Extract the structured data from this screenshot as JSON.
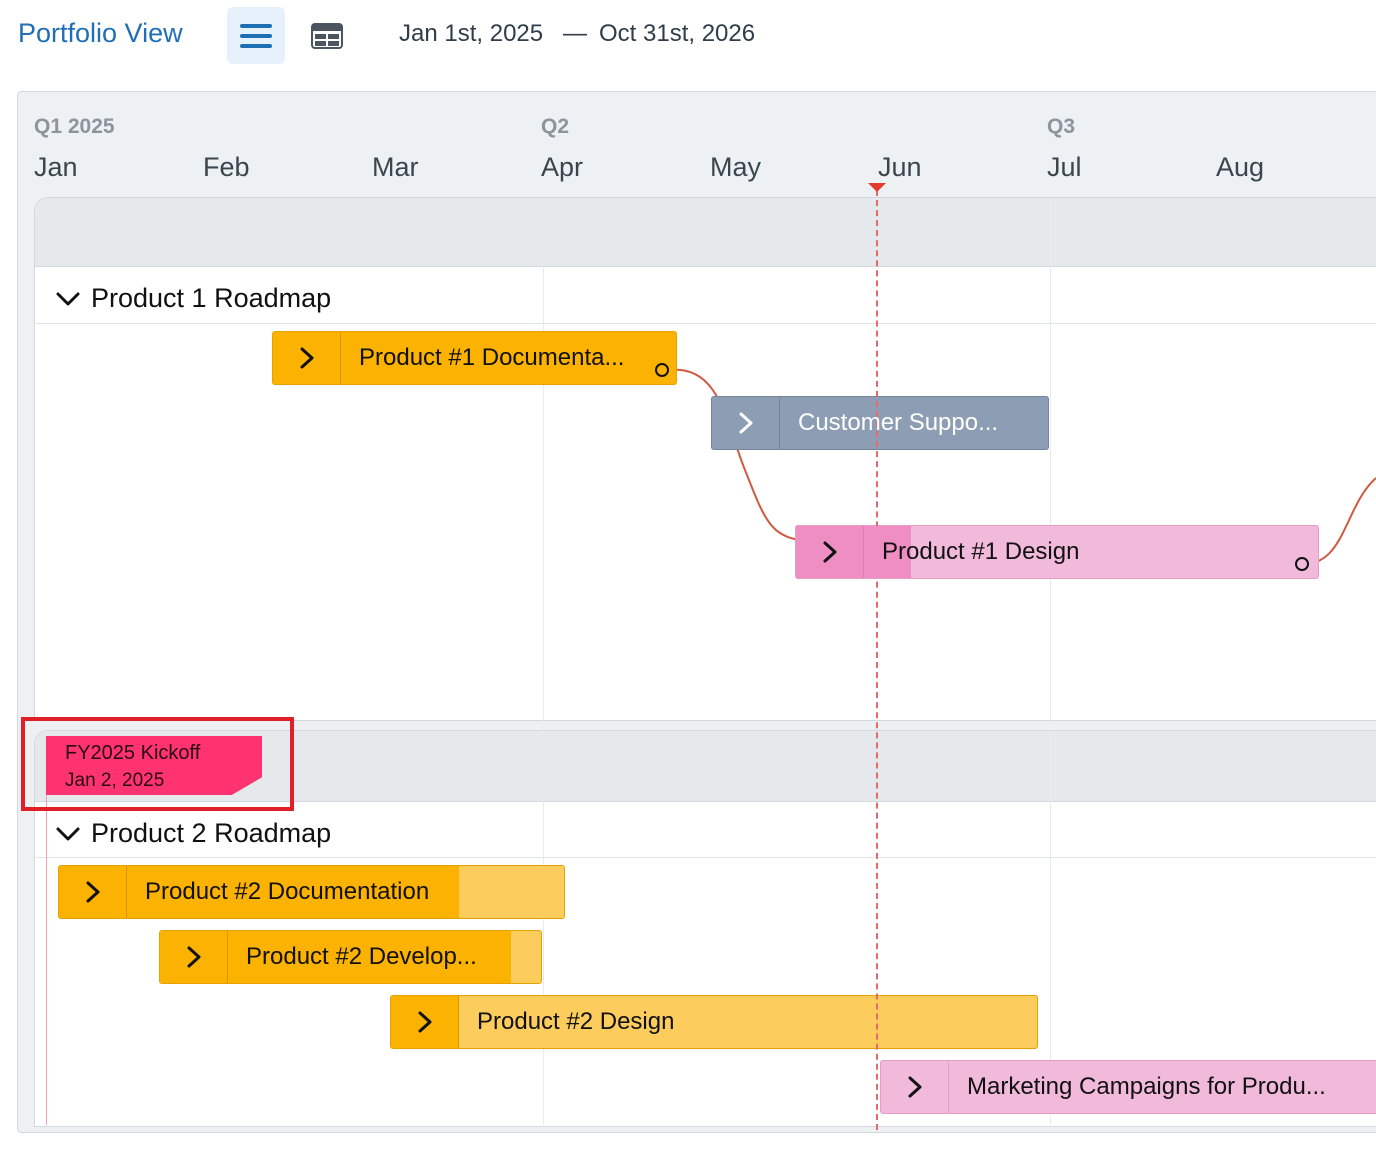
{
  "header": {
    "title": "Portfolio View",
    "start_date": "Jan 1st, 2025",
    "separator": "—",
    "end_date": "Oct 31st, 2026",
    "views": [
      {
        "name": "list-view",
        "icon": "hamburger-icon",
        "active": true
      },
      {
        "name": "table-view",
        "icon": "table-icon",
        "active": false
      }
    ]
  },
  "timeline": {
    "quarters": [
      "Q1 2025",
      "Q2",
      "Q3"
    ],
    "months": [
      "Jan",
      "Feb",
      "Mar",
      "Apr",
      "May",
      "Jun",
      "Jul",
      "Aug"
    ]
  },
  "groups": [
    {
      "title": "Product 1 Roadmap",
      "bars": [
        {
          "label": "Product #1 Documenta...",
          "color": "#fbb200"
        },
        {
          "label": "Customer Suppo...",
          "color": "#8d9eb4"
        },
        {
          "label": "Product #1 Design",
          "color": "#f2bada"
        }
      ]
    },
    {
      "title": "Product 2 Roadmap",
      "bars": [
        {
          "label": "Product #2 Documentation",
          "color": "#fccc5d"
        },
        {
          "label": "Product #2 Develop...",
          "color": "#fbb200"
        },
        {
          "label": "Product #2 Design",
          "color": "#fccc5d"
        },
        {
          "label": "Marketing Campaigns for Produ...",
          "color": "#f2bada"
        }
      ]
    }
  ],
  "milestone": {
    "title": "FY2025 Kickoff",
    "date": "Jan 2, 2025",
    "color": "#ff3370"
  },
  "colors": {
    "accent": "#1f6fb5",
    "today_marker": "#e23b2e",
    "dependency_line": "#cf5a42",
    "highlight": "#e21f26"
  }
}
